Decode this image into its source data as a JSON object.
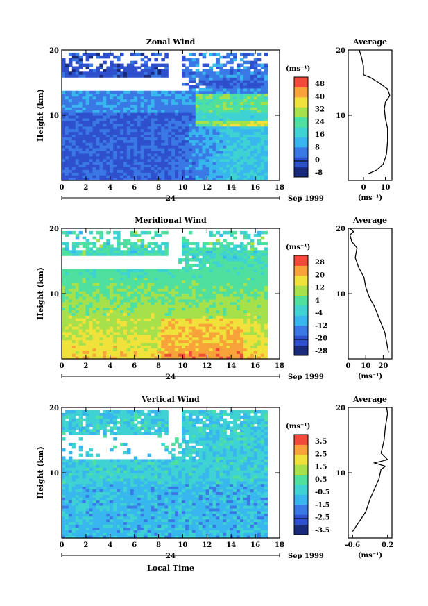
{
  "chart_data": [
    {
      "type": "heatmap",
      "title": "Zonal Wind",
      "ylabel": "Height (km)",
      "xlim": [
        0,
        18
      ],
      "ylim": [
        0,
        20
      ],
      "x_ticks": [
        "0",
        "2",
        "4",
        "6",
        "8",
        "10",
        "12",
        "14",
        "16",
        "18"
      ],
      "y_ticks": [
        "10",
        "20"
      ],
      "date_axis": {
        "day_label": "24",
        "month_label": "Sep 1999"
      },
      "colorbar": {
        "unit_label": "(ms⁻¹)",
        "ticks": [
          "48",
          "40",
          "32",
          "24",
          "16",
          "8",
          "0",
          "-8"
        ],
        "range": [
          -8,
          50
        ],
        "colors": [
          "#1a2a7a",
          "#2f50cc",
          "#3a78e6",
          "#38b6ee",
          "#3ed2d2",
          "#4fe0a0",
          "#a6e04a",
          "#f0e23a",
          "#f7a33a",
          "#f2493a"
        ]
      },
      "average_profile": {
        "title": "Average",
        "xlabel": "(ms⁻¹)",
        "x_ticks": [
          "0",
          "10"
        ],
        "xlim": [
          -7,
          13
        ],
        "points": [
          [
            2,
            1
          ],
          [
            6,
            1.6
          ],
          [
            9,
            2.5
          ],
          [
            10.5,
            4
          ],
          [
            11,
            6
          ],
          [
            11,
            8
          ],
          [
            10,
            9.5
          ],
          [
            9.5,
            11
          ],
          [
            10,
            12
          ],
          [
            12,
            13
          ],
          [
            11,
            14
          ],
          [
            7,
            15
          ],
          [
            3,
            15.8
          ],
          [
            0,
            16.2
          ],
          [
            0,
            17.5
          ],
          [
            -1,
            19
          ],
          [
            -2,
            20
          ]
        ]
      }
    },
    {
      "type": "heatmap",
      "title": "Meridional Wind",
      "ylabel": "Height (km)",
      "xlim": [
        0,
        18
      ],
      "ylim": [
        0,
        20
      ],
      "x_ticks": [
        "0",
        "2",
        "4",
        "6",
        "8",
        "10",
        "12",
        "14",
        "16",
        "18"
      ],
      "y_ticks": [
        "10",
        "20"
      ],
      "date_axis": {
        "day_label": "24",
        "month_label": "Sep 1999"
      },
      "colorbar": {
        "unit_label": "(ms⁻¹)",
        "ticks": [
          "28",
          "20",
          "12",
          "4",
          "-4",
          "-12",
          "-20",
          "-28"
        ],
        "range": [
          -28,
          30
        ],
        "colors": [
          "#1a2a7a",
          "#2f50cc",
          "#3a78e6",
          "#38b6ee",
          "#3ed2d2",
          "#4fe0a0",
          "#a6e04a",
          "#f0e23a",
          "#f7a33a",
          "#f2493a"
        ]
      },
      "average_profile": {
        "title": "Average",
        "xlabel": "(ms⁻¹)",
        "x_ticks": [
          "0",
          "10",
          "20"
        ],
        "xlim": [
          0,
          25
        ],
        "points": [
          [
            23,
            1
          ],
          [
            22,
            2.5
          ],
          [
            21,
            4
          ],
          [
            18,
            6
          ],
          [
            15,
            8
          ],
          [
            12,
            9.5
          ],
          [
            10,
            11
          ],
          [
            9,
            12.5
          ],
          [
            6,
            14
          ],
          [
            4,
            15.5
          ],
          [
            5,
            17
          ],
          [
            2,
            18
          ],
          [
            1,
            19
          ],
          [
            3,
            19.5
          ],
          [
            1,
            20
          ]
        ]
      }
    },
    {
      "type": "heatmap",
      "title": "Vertical Wind",
      "ylabel": "Height (km)",
      "xlabel": "Local Time",
      "xlim": [
        0,
        18
      ],
      "ylim": [
        0,
        20
      ],
      "x_ticks": [
        "0",
        "2",
        "4",
        "6",
        "8",
        "10",
        "12",
        "14",
        "16",
        "18"
      ],
      "y_ticks": [
        "10",
        "20"
      ],
      "date_axis": {
        "day_label": "24",
        "month_label": "Sep 1999"
      },
      "colorbar": {
        "unit_label": "(ms⁻¹)",
        "ticks": [
          "3.5",
          "2.5",
          "1.5",
          "0.5",
          "-0.5",
          "-1.5",
          "-2.5",
          "-3.5"
        ],
        "range": [
          -3.5,
          4
        ],
        "colors": [
          "#1a2a7a",
          "#2f50cc",
          "#3a78e6",
          "#38b6ee",
          "#3ed2d2",
          "#4fe0a0",
          "#a6e04a",
          "#f0e23a",
          "#f7a33a",
          "#f2493a"
        ]
      },
      "average_profile": {
        "title": "Average",
        "xlabel": "(ms⁻¹)",
        "x_ticks": [
          "-0.6",
          "0.2"
        ],
        "xlim": [
          -0.7,
          0.3
        ],
        "points": [
          [
            -0.6,
            1
          ],
          [
            -0.45,
            2.5
          ],
          [
            -0.3,
            4
          ],
          [
            -0.2,
            6
          ],
          [
            -0.1,
            7.5
          ],
          [
            0,
            9
          ],
          [
            0.05,
            10.5
          ],
          [
            0.15,
            11
          ],
          [
            -0.1,
            11.5
          ],
          [
            0.2,
            12
          ],
          [
            0.05,
            13
          ],
          [
            0.12,
            15
          ],
          [
            0.15,
            17
          ],
          [
            0.2,
            19
          ],
          [
            0.18,
            20
          ]
        ]
      }
    }
  ]
}
